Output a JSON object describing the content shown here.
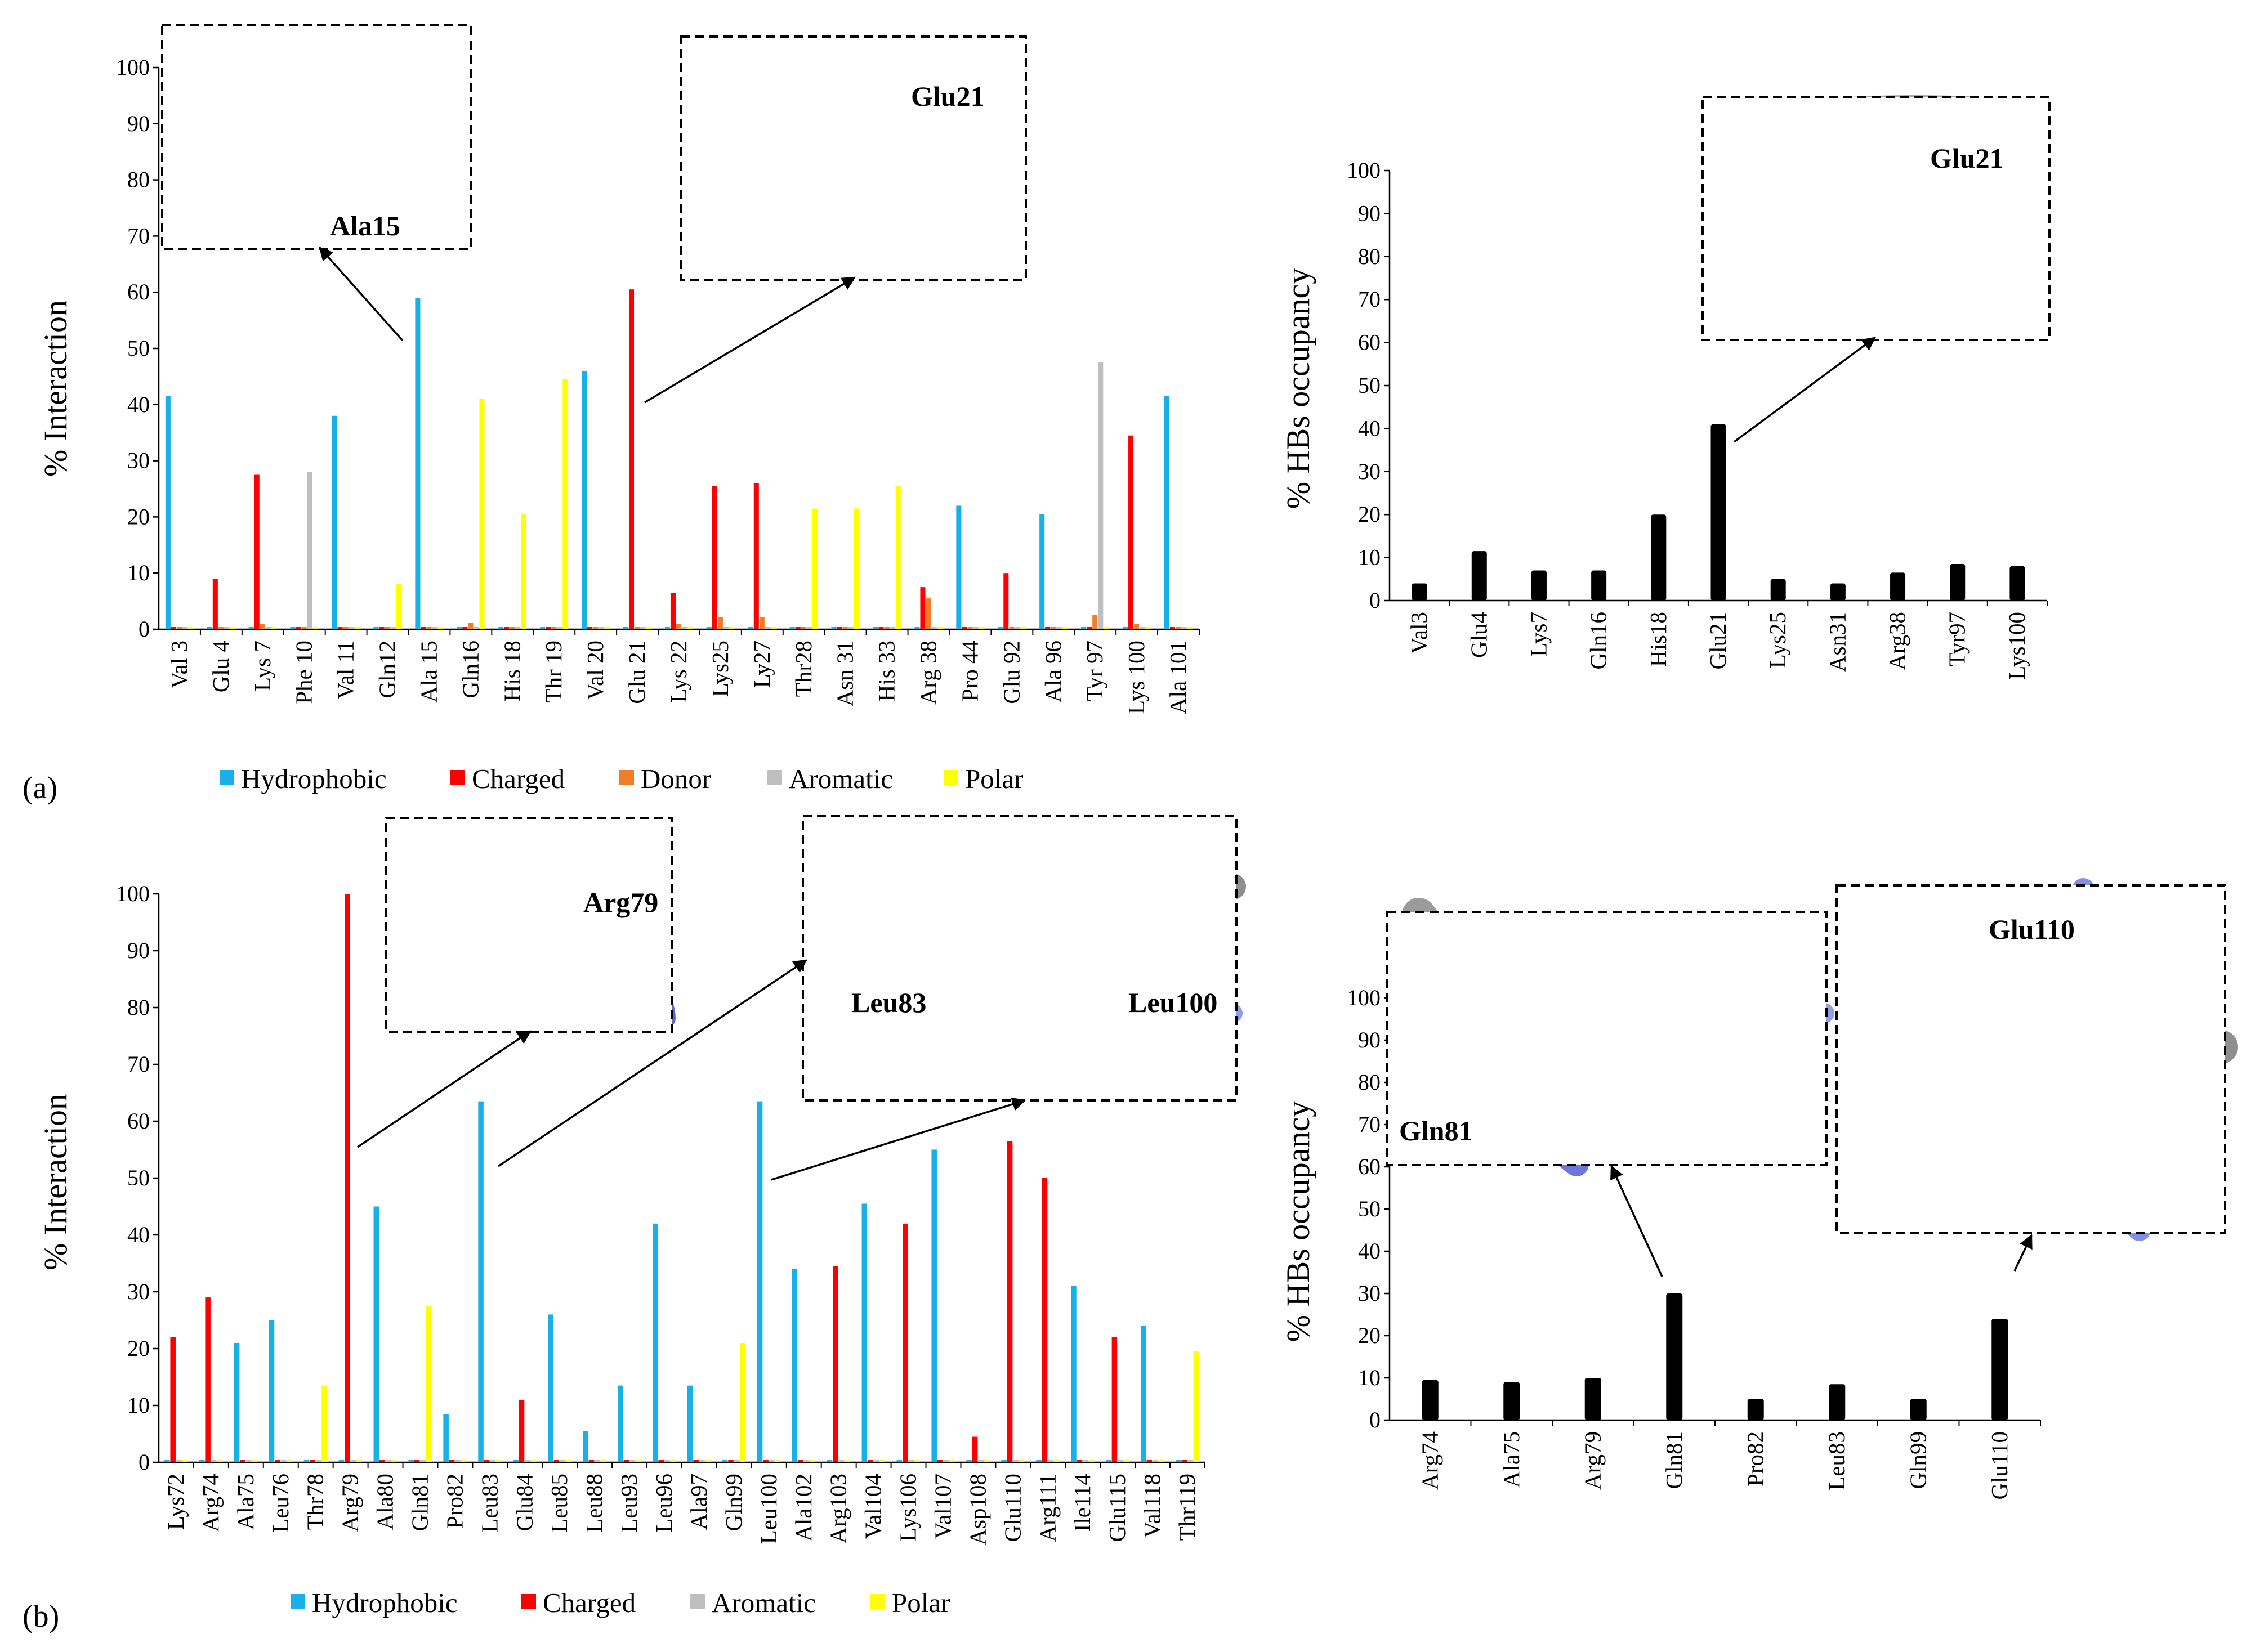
{
  "panels": [
    {
      "label": "(a)"
    },
    {
      "label": "(b)"
    }
  ],
  "colors": {
    "Hydrophobic": "#17b0e8",
    "Charged": "#ff0000",
    "Donor": "#f07d28",
    "Aromatic": "#bfbfbf",
    "Polar": "#ffff00",
    "HBs": "#000000"
  },
  "chart_data": [
    {
      "id": "a-left",
      "type": "bar",
      "ylabel": "% Interaction",
      "ylim": [
        0,
        100
      ],
      "ytick_step": 10,
      "legend": [
        "Hydrophobic",
        "Charged",
        "Donor",
        "Aromatic",
        "Polar"
      ],
      "categories": [
        "Val 3",
        "Glu 4",
        "Lys 7",
        "Phe 10",
        "Val 11",
        "Gln12",
        "Ala 15",
        "Gln16",
        "His 18",
        "Thr 19",
        "Val 20",
        "Glu 21",
        "Lys 22",
        "Lys25",
        "Ly27",
        "Thr28",
        "Asn 31",
        "His 33",
        "Arg 38",
        "Pro 44",
        "Glu 92",
        "Ala 96",
        "Tyr 97",
        "Lys 100",
        "Ala 101"
      ],
      "series": [
        {
          "name": "Hydrophobic",
          "values": [
            41.5,
            0,
            0,
            0,
            38,
            0,
            59,
            0,
            0,
            0,
            46,
            0,
            0,
            0,
            0,
            0,
            0,
            0,
            0,
            22,
            0,
            20.5,
            0,
            0,
            41.5
          ]
        },
        {
          "name": "Charged",
          "values": [
            0,
            9,
            27.5,
            0,
            0,
            0,
            0,
            0,
            0,
            0,
            0,
            60.5,
            6.5,
            25.5,
            26,
            0,
            0,
            0,
            7.5,
            0,
            10,
            0,
            0,
            34.5,
            0
          ]
        },
        {
          "name": "Donor",
          "values": [
            0,
            0,
            1,
            0,
            0,
            0,
            0,
            1.2,
            0,
            0,
            0,
            0,
            1,
            2.2,
            2.2,
            0,
            0,
            0,
            5.5,
            0,
            0,
            0,
            2.5,
            1,
            0
          ]
        },
        {
          "name": "Aromatic",
          "values": [
            0,
            0,
            0,
            28,
            0,
            0,
            0,
            0,
            0,
            0,
            0,
            0,
            0,
            0,
            0,
            0,
            0,
            0,
            0,
            0,
            0,
            0,
            47.5,
            0,
            0
          ]
        },
        {
          "name": "Polar",
          "values": [
            0,
            0,
            0,
            0,
            0,
            8,
            0,
            41,
            20.5,
            44.5,
            0,
            0,
            0,
            0,
            0,
            21.5,
            21.5,
            25.5,
            0,
            0,
            0,
            0,
            0,
            0,
            0
          ]
        }
      ],
      "insets": [
        {
          "label": "Ala15",
          "points_to": "Ala 15"
        },
        {
          "label": "Glu21",
          "points_to": "Glu 21"
        }
      ]
    },
    {
      "id": "a-right",
      "type": "bar",
      "ylabel": "% HBs occupancy",
      "ylim": [
        0,
        100
      ],
      "ytick_step": 10,
      "categories": [
        "Val3",
        "Glu4",
        "Lys7",
        "Gln16",
        "His18",
        "Glu21",
        "Lys25",
        "Asn31",
        "Arg38",
        "Tyr97",
        "Lys100"
      ],
      "values": [
        4,
        11.5,
        7,
        7,
        20,
        41,
        5,
        4,
        6.5,
        8.5,
        8
      ],
      "insets": [
        {
          "label": "Glu21",
          "points_to": "Glu21"
        }
      ]
    },
    {
      "id": "b-left",
      "type": "bar",
      "ylabel": "% Interaction",
      "ylim": [
        0,
        100
      ],
      "ytick_step": 10,
      "legend": [
        "Hydrophobic",
        "Charged",
        "Aromatic",
        "Polar"
      ],
      "categories": [
        "Lys72",
        "Arg74",
        "Ala75",
        "Leu76",
        "Thr78",
        "Arg79",
        "Ala80",
        "Gln81",
        "Pro82",
        "Leu83",
        "Glu84",
        "Leu85",
        "Leu88",
        "Leu93",
        "Leu96",
        "Ala97",
        "Gln99",
        "Leu100",
        "Ala102",
        "Arg103",
        "Val104",
        "Lys106",
        "Val107",
        "Asp108",
        "Glu110",
        "Arg111",
        "Ile114",
        "Glu115",
        "Val118",
        "Thr119"
      ],
      "series": [
        {
          "name": "Hydrophobic",
          "values": [
            0,
            0,
            21,
            25,
            0,
            0,
            45,
            0,
            8.5,
            63.5,
            0,
            26,
            5.5,
            13.5,
            42,
            13.5,
            0,
            63.5,
            34,
            0,
            45.5,
            0,
            55,
            0,
            0,
            0,
            31,
            0,
            24,
            0
          ]
        },
        {
          "name": "Charged",
          "values": [
            22,
            29,
            0,
            0,
            0,
            100,
            0,
            0,
            0,
            0,
            11,
            0,
            0,
            0,
            0,
            0,
            0,
            0,
            0,
            34.5,
            0,
            42,
            0,
            4.5,
            56.5,
            50,
            0,
            22,
            0,
            0
          ]
        },
        {
          "name": "Aromatic",
          "values": [
            0,
            0,
            0,
            0,
            0,
            0,
            0,
            0,
            0,
            0,
            0,
            0,
            0,
            0,
            0,
            0,
            0,
            0,
            0,
            0,
            0,
            0,
            0,
            0,
            0,
            0,
            0,
            0,
            0,
            0
          ]
        },
        {
          "name": "Polar",
          "values": [
            0,
            0,
            0,
            0,
            13.5,
            0,
            0,
            27.5,
            0,
            0,
            0,
            0,
            0,
            0,
            0,
            0,
            21,
            0,
            0,
            0,
            0,
            0,
            0,
            0,
            0,
            0,
            0,
            0,
            0,
            19.5
          ]
        }
      ],
      "insets": [
        {
          "label": "Arg79",
          "points_to": "Arg79"
        },
        {
          "label": "Leu83",
          "points_to": "Leu83"
        },
        {
          "label": "Leu100",
          "points_to": "Leu100"
        }
      ]
    },
    {
      "id": "b-right",
      "type": "bar",
      "ylabel": "% HBs occupancy",
      "ylim": [
        0,
        100
      ],
      "ytick_step": 10,
      "categories": [
        "Arg74",
        "Ala75",
        "Arg79",
        "Gln81",
        "Pro82",
        "Leu83",
        "Gln99",
        "Glu110"
      ],
      "values": [
        9.5,
        9,
        10,
        30,
        5,
        8.5,
        5,
        24
      ],
      "insets": [
        {
          "label": "Gln81",
          "points_to": "Gln81"
        },
        {
          "label": "Glu110",
          "points_to": "Glu110"
        }
      ]
    }
  ]
}
